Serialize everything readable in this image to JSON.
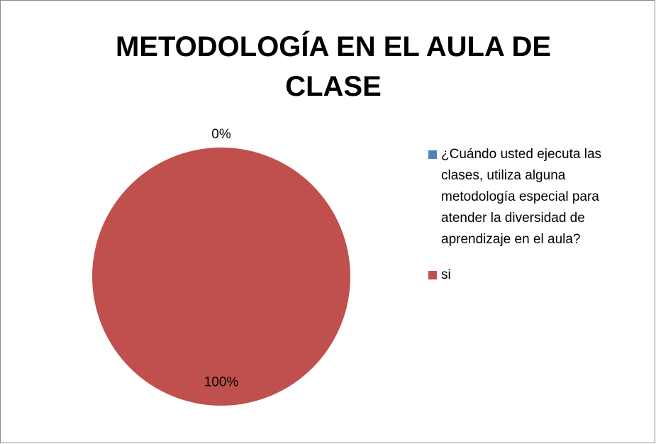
{
  "chart_data": {
    "type": "pie",
    "title": "METODOLOGÍA EN EL AULA DE CLASE",
    "categories": [
      "¿Cuándo usted ejecuta las clases, utiliza alguna metodología especial para atender la diversidad de aprendizaje en el aula?",
      "si"
    ],
    "values": [
      0,
      100
    ],
    "value_labels": [
      "0%",
      "100%"
    ],
    "colors": [
      "#4f81bd",
      "#c0504d"
    ],
    "legend": "right"
  }
}
